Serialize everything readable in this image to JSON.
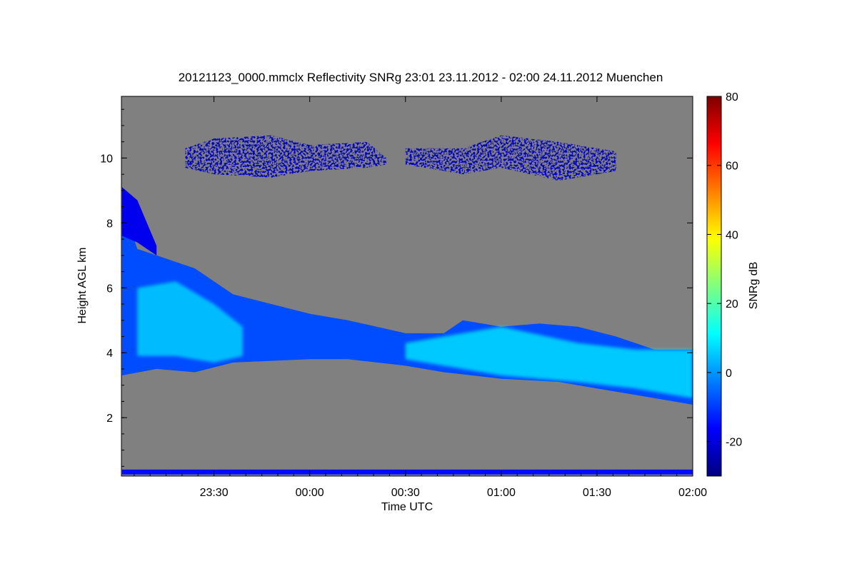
{
  "chart_data": {
    "type": "heatmap",
    "title": "20121123_0000.mmclx Reflectivity SNRg   23:01 23.11.2012 - 02:00 24.11.2012 Muenchen",
    "xlabel": "Time UTC",
    "ylabel": "Height AGL km",
    "colorbar_label": "SNRg dB",
    "x_range_hours": [
      23.0167,
      26.0
    ],
    "y_range_km": [
      0.2,
      11.9
    ],
    "x_ticks": [
      {
        "value": 23.5,
        "label": "23:30"
      },
      {
        "value": 24.0,
        "label": "00:00"
      },
      {
        "value": 24.5,
        "label": "00:30"
      },
      {
        "value": 25.0,
        "label": "01:00"
      },
      {
        "value": 25.5,
        "label": "01:30"
      },
      {
        "value": 26.0,
        "label": "02:00"
      }
    ],
    "y_ticks": [
      {
        "value": 2,
        "label": "2"
      },
      {
        "value": 4,
        "label": "4"
      },
      {
        "value": 6,
        "label": "6"
      },
      {
        "value": 8,
        "label": "8"
      },
      {
        "value": 10,
        "label": "10"
      }
    ],
    "colorbar_range": [
      -30,
      80
    ],
    "colorbar_ticks": [
      {
        "value": -20,
        "label": "-20"
      },
      {
        "value": 0,
        "label": "0"
      },
      {
        "value": 20,
        "label": "20"
      },
      {
        "value": 40,
        "label": "40"
      },
      {
        "value": 60,
        "label": "60"
      },
      {
        "value": 80,
        "label": "80"
      }
    ],
    "background_color": "#808080",
    "colormap": "jet",
    "colormap_stops": [
      "#00007f",
      "#0000ff",
      "#007fff",
      "#00ffff",
      "#7fff7f",
      "#ffff00",
      "#ff7f00",
      "#ff0000",
      "#7f0000"
    ],
    "features": [
      {
        "name": "main-cloud-layer",
        "snr_db": -8,
        "top_km": [
          [
            23.02,
            8.6
          ],
          [
            23.1,
            7.2
          ],
          [
            23.2,
            7.0
          ],
          [
            23.4,
            6.6
          ],
          [
            23.6,
            5.8
          ],
          [
            23.8,
            5.5
          ],
          [
            24.0,
            5.2
          ],
          [
            24.2,
            5.0
          ],
          [
            24.5,
            4.6
          ],
          [
            24.7,
            4.6
          ],
          [
            24.8,
            5.0
          ],
          [
            25.0,
            4.8
          ],
          [
            25.2,
            4.9
          ],
          [
            25.4,
            4.8
          ],
          [
            25.6,
            4.5
          ],
          [
            25.7,
            4.3
          ],
          [
            25.8,
            4.1
          ],
          [
            26.0,
            4.1
          ]
        ],
        "base_km": [
          [
            23.02,
            3.3
          ],
          [
            23.2,
            3.5
          ],
          [
            23.4,
            3.4
          ],
          [
            23.6,
            3.7
          ],
          [
            24.0,
            3.8
          ],
          [
            24.2,
            3.8
          ],
          [
            24.5,
            3.6
          ],
          [
            24.7,
            3.4
          ],
          [
            25.0,
            3.2
          ],
          [
            25.3,
            3.1
          ],
          [
            25.5,
            2.9
          ],
          [
            25.7,
            2.7
          ],
          [
            25.9,
            2.5
          ],
          [
            26.0,
            2.4
          ]
        ]
      },
      {
        "name": "upper-streak",
        "snr_db": -18,
        "top_km": [
          [
            23.02,
            9.1
          ],
          [
            23.1,
            8.7
          ],
          [
            23.15,
            8.0
          ],
          [
            23.2,
            7.3
          ]
        ],
        "base_km": [
          [
            23.02,
            7.6
          ],
          [
            23.1,
            7.4
          ],
          [
            23.15,
            7.2
          ],
          [
            23.2,
            7.0
          ]
        ]
      },
      {
        "name": "cirrus-layer-1",
        "snr_db": -22,
        "top_km": [
          [
            23.35,
            10.3
          ],
          [
            23.5,
            10.6
          ],
          [
            23.8,
            10.7
          ],
          [
            24.0,
            10.4
          ],
          [
            24.3,
            10.5
          ],
          [
            24.4,
            10.0
          ]
        ],
        "base_km": [
          [
            23.35,
            9.7
          ],
          [
            23.5,
            9.5
          ],
          [
            23.8,
            9.4
          ],
          [
            24.0,
            9.6
          ],
          [
            24.3,
            9.7
          ],
          [
            24.4,
            9.8
          ]
        ]
      },
      {
        "name": "cirrus-layer-2",
        "snr_db": -22,
        "top_km": [
          [
            24.5,
            10.3
          ],
          [
            24.8,
            10.3
          ],
          [
            25.0,
            10.7
          ],
          [
            25.3,
            10.5
          ],
          [
            25.6,
            10.2
          ]
        ],
        "base_km": [
          [
            24.5,
            9.8
          ],
          [
            24.8,
            9.5
          ],
          [
            25.0,
            9.7
          ],
          [
            25.3,
            9.3
          ],
          [
            25.6,
            9.6
          ]
        ]
      },
      {
        "name": "core-region-1",
        "snr_db": 8,
        "top_km": [
          [
            23.1,
            6.0
          ],
          [
            23.3,
            6.2
          ],
          [
            23.5,
            5.5
          ],
          [
            23.65,
            4.8
          ]
        ],
        "base_km": [
          [
            23.1,
            3.9
          ],
          [
            23.3,
            3.9
          ],
          [
            23.5,
            3.7
          ],
          [
            23.65,
            3.9
          ]
        ]
      },
      {
        "name": "core-region-2",
        "snr_db": 10,
        "top_km": [
          [
            24.5,
            4.3
          ],
          [
            24.8,
            4.6
          ],
          [
            25.0,
            4.8
          ],
          [
            25.4,
            4.3
          ],
          [
            25.7,
            4.1
          ],
          [
            26.0,
            4.1
          ]
        ],
        "base_km": [
          [
            24.5,
            3.8
          ],
          [
            24.8,
            3.5
          ],
          [
            25.0,
            3.3
          ],
          [
            25.4,
            3.1
          ],
          [
            25.7,
            2.9
          ],
          [
            26.0,
            2.6
          ]
        ]
      },
      {
        "name": "ground-clutter",
        "snr_db": -15,
        "top_km": [
          [
            23.02,
            0.4
          ],
          [
            26.0,
            0.4
          ]
        ],
        "base_km": [
          [
            23.02,
            0.25
          ],
          [
            26.0,
            0.25
          ]
        ]
      }
    ]
  }
}
